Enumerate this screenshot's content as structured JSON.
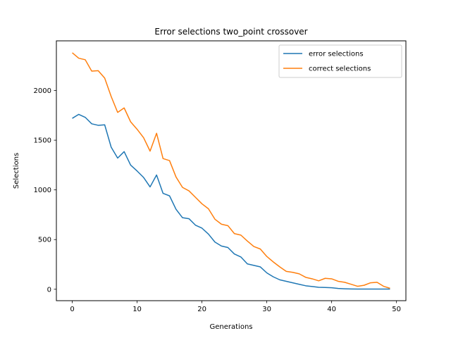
{
  "chart_data": {
    "type": "line",
    "title": "Error selections two_point crossover",
    "xlabel": "Generations",
    "ylabel": "Selections",
    "xlim": [
      -2.45,
      51.45
    ],
    "ylim": [
      -115,
      2500
    ],
    "xticks": [
      0,
      10,
      20,
      30,
      40,
      50
    ],
    "yticks": [
      0,
      500,
      1000,
      1500,
      2000
    ],
    "grid": false,
    "legend_position": "top-right",
    "x": [
      0,
      1,
      2,
      3,
      4,
      5,
      6,
      7,
      8,
      9,
      10,
      11,
      12,
      13,
      14,
      15,
      16,
      17,
      18,
      19,
      20,
      21,
      22,
      23,
      24,
      25,
      26,
      27,
      28,
      29,
      30,
      31,
      32,
      33,
      34,
      35,
      36,
      37,
      38,
      39,
      40,
      41,
      42,
      43,
      44,
      45,
      46,
      47,
      48,
      49
    ],
    "series": [
      {
        "name": "error selections",
        "color": "#1f77b4",
        "values": [
          1720,
          1760,
          1730,
          1665,
          1650,
          1655,
          1430,
          1320,
          1385,
          1250,
          1190,
          1125,
          1030,
          1150,
          965,
          940,
          805,
          720,
          710,
          645,
          615,
          555,
          475,
          435,
          420,
          355,
          325,
          255,
          240,
          225,
          165,
          125,
          95,
          80,
          65,
          50,
          35,
          28,
          20,
          18,
          15,
          8,
          5,
          3,
          2,
          2,
          2,
          2,
          2,
          2
        ]
      },
      {
        "name": "correct selections",
        "color": "#ff7f0e",
        "values": [
          2380,
          2325,
          2310,
          2195,
          2200,
          2125,
          1940,
          1780,
          1825,
          1685,
          1610,
          1525,
          1390,
          1570,
          1315,
          1295,
          1130,
          1025,
          990,
          925,
          860,
          810,
          705,
          655,
          640,
          560,
          545,
          485,
          430,
          405,
          330,
          275,
          225,
          180,
          170,
          155,
          120,
          105,
          85,
          110,
          105,
          80,
          70,
          50,
          30,
          40,
          65,
          70,
          30,
          10
        ]
      }
    ]
  }
}
